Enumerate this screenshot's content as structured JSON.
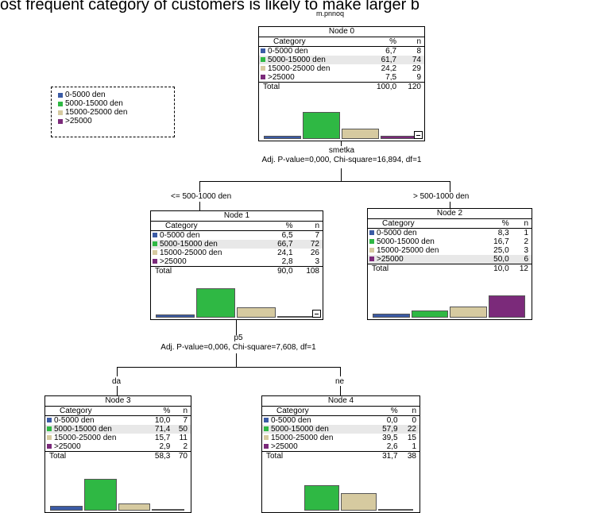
{
  "caption": "ost frequent category of customers is likely to make larger b",
  "dependent_variable": "m.pnnoq",
  "colors": {
    "c1": "#3b5ba5",
    "c2": "#2fb844",
    "c3": "#d6caa0",
    "c4": "#7b2a7a"
  },
  "legend": [
    "0-5000 den",
    "5000-15000 den",
    "15000-25000 den",
    ">25000"
  ],
  "table_header": {
    "category": "Category",
    "percent": "%",
    "n": "n"
  },
  "total_label": "Total",
  "nodes": [
    {
      "title": "Node 0",
      "rows": [
        [
          "0-5000 den",
          "6,7",
          "8"
        ],
        [
          "5000-15000 den",
          "61,7",
          "74"
        ],
        [
          "15000-25000 den",
          "24,2",
          "29"
        ],
        [
          ">25000",
          "7,5",
          "9"
        ]
      ],
      "total": [
        "100,0",
        "120"
      ],
      "pct": [
        6.7,
        61.7,
        24.2,
        7.5
      ]
    },
    {
      "title": "Node 1",
      "rows": [
        [
          "0-5000 den",
          "6,5",
          "7"
        ],
        [
          "5000-15000 den",
          "66,7",
          "72"
        ],
        [
          "15000-25000 den",
          "24,1",
          "26"
        ],
        [
          ">25000",
          "2,8",
          "3"
        ]
      ],
      "total": [
        "90,0",
        "108"
      ],
      "pct": [
        6.5,
        66.7,
        24.1,
        2.8
      ]
    },
    {
      "title": "Node 2",
      "rows": [
        [
          "0-5000 den",
          "8,3",
          "1"
        ],
        [
          "5000-15000 den",
          "16,7",
          "2"
        ],
        [
          "15000-25000 den",
          "25,0",
          "3"
        ],
        [
          ">25000",
          "50,0",
          "6"
        ]
      ],
      "total": [
        "10,0",
        "12"
      ],
      "pct": [
        8.3,
        16.7,
        25.0,
        50.0
      ]
    },
    {
      "title": "Node 3",
      "rows": [
        [
          "0-5000 den",
          "10,0",
          "7"
        ],
        [
          "5000-15000 den",
          "71,4",
          "50"
        ],
        [
          "15000-25000 den",
          "15,7",
          "11"
        ],
        [
          ">25000",
          "2,9",
          "2"
        ]
      ],
      "total": [
        "58,3",
        "70"
      ],
      "pct": [
        10.0,
        71.4,
        15.7,
        2.9
      ]
    },
    {
      "title": "Node 4",
      "rows": [
        [
          "0-5000 den",
          "0,0",
          "0"
        ],
        [
          "5000-15000 den",
          "57,9",
          "22"
        ],
        [
          "15000-25000 den",
          "39,5",
          "15"
        ],
        [
          ">25000",
          "2,6",
          "1"
        ]
      ],
      "total": [
        "31,7",
        "38"
      ],
      "pct": [
        0.0,
        57.9,
        39.5,
        2.6
      ]
    }
  ],
  "splits": [
    {
      "variable": "smetka",
      "stats": "Adj. P-value=0,000, Chi-square=16,894, df=1"
    },
    {
      "variable": "p5",
      "stats": "Adj. P-value=0,006, Chi-square=7,608, df=1"
    }
  ],
  "edges": [
    "<= 500-1000 den",
    "> 500-1000 den",
    "da",
    "ne"
  ]
}
